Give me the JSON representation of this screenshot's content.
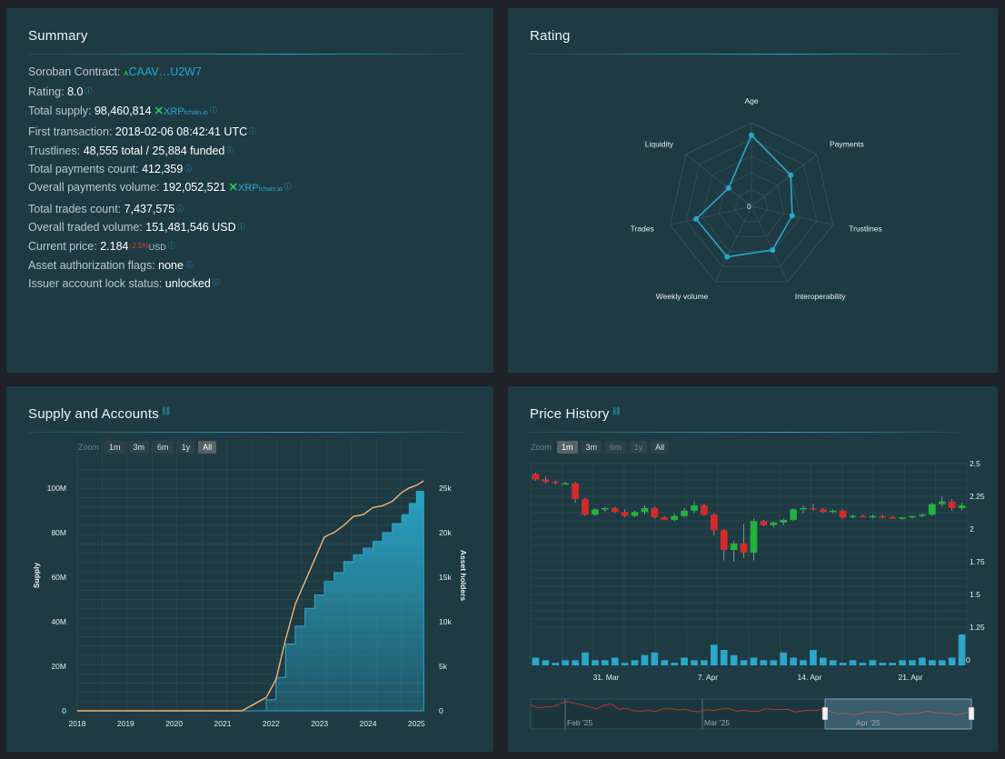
{
  "summary": {
    "title": "Summary",
    "soroban_label": "Soroban Contract:",
    "soroban_value": "CAAV…U2W7",
    "rating_label": "Rating:",
    "rating_value": "8.0",
    "supply_label": "Total supply:",
    "supply_value": "98,460,814",
    "supply_token": "XRP",
    "supply_issuer": "fchain.io",
    "first_tx_label": "First transaction:",
    "first_tx_value": "2018-02-06 08:42:41 UTC",
    "trustlines_label": "Trustlines:",
    "trustlines_value": "48,555 total / 25,884 funded",
    "payments_count_label": "Total payments count:",
    "payments_count_value": "412,359",
    "payments_volume_label": "Overall payments volume:",
    "payments_volume_value": "192,052,521",
    "payments_volume_token": "XRP",
    "payments_volume_issuer": "fchain.io",
    "trades_count_label": "Total trades count:",
    "trades_count_value": "7,437,575",
    "traded_volume_label": "Overall traded volume:",
    "traded_volume_value": "151,481,546 USD",
    "price_label": "Current price:",
    "price_value": "2.184",
    "price_change": "↓2.5%",
    "price_unit": "USD",
    "auth_flags_label": "Asset authorization flags:",
    "auth_flags_value": "none",
    "lock_label": "Issuer account lock status:",
    "lock_value": "unlocked"
  },
  "rating": {
    "title": "Rating",
    "center_label": "0",
    "axes": [
      "Age",
      "Payments",
      "Trustlines",
      "Interoperability",
      "Weekly volume",
      "Trades",
      "Liquidity"
    ],
    "values": [
      0.85,
      0.6,
      0.5,
      0.58,
      0.67,
      0.68,
      0.35
    ],
    "color": "#2aa7c9"
  },
  "supply_chart": {
    "title": "Supply and Accounts",
    "zoom_label": "Zoom",
    "zoom_buttons": [
      "1m",
      "3m",
      "6m",
      "1y",
      "All"
    ],
    "selected": "All",
    "chart_data": {
      "type": "area",
      "x_ticks": [
        "2018",
        "2019",
        "2020",
        "2021",
        "2022",
        "2023",
        "2024",
        "2025"
      ],
      "left_ticks": [
        "0",
        "20M",
        "40M",
        "60M",
        "80M",
        "100M"
      ],
      "right_ticks": [
        "0",
        "5k",
        "10k",
        "15k",
        "20k",
        "25k"
      ],
      "ylabel_left": "Supply",
      "ylabel_right": "Asset holders",
      "supply_color": "#2aa7c9",
      "holders_color": "#f0b27a",
      "x": [
        2018.0,
        2021.4,
        2021.9,
        2022.1,
        2022.3,
        2022.5,
        2022.7,
        2022.9,
        2023.1,
        2023.3,
        2023.5,
        2023.7,
        2023.9,
        2024.1,
        2024.3,
        2024.5,
        2024.7,
        2024.85,
        2025.0,
        2025.15
      ],
      "supply": [
        0,
        0,
        5,
        15,
        30,
        38,
        46,
        52,
        58,
        62,
        67,
        70,
        73,
        76,
        80,
        84,
        88,
        93,
        98.5,
        98.5
      ],
      "holders": [
        0,
        0,
        1.5,
        3.5,
        8,
        12,
        14.5,
        17,
        19.5,
        20,
        20.8,
        21.8,
        22,
        22.8,
        23,
        23.5,
        24.5,
        25,
        25.3,
        25.8
      ]
    }
  },
  "price_chart": {
    "title": "Price History",
    "zoom_label": "Zoom",
    "zoom_buttons": [
      "1m",
      "3m",
      "6m",
      "1y",
      "All"
    ],
    "selected": "1m",
    "chart_data": {
      "type": "candlestick",
      "y_ticks": [
        "2.5",
        "2.25",
        "2",
        "1.75",
        "1.5",
        "1.25"
      ],
      "volume_tick": "0",
      "x_ticks": [
        "31. Mar",
        "7. Apr",
        "14. Apr",
        "21. Apr"
      ],
      "navigator_labels": [
        "Feb '25",
        "Mar '25",
        "Apr '25"
      ],
      "up_color": "#22b33a",
      "down_color": "#d62a2a",
      "volume_color": "#2aa7c9",
      "candles": [
        [
          2.42,
          2.43,
          2.37,
          2.38
        ],
        [
          2.38,
          2.4,
          2.35,
          2.36
        ],
        [
          2.36,
          2.37,
          2.34,
          2.35
        ],
        [
          2.35,
          2.36,
          2.34,
          2.35
        ],
        [
          2.35,
          2.36,
          2.2,
          2.23
        ],
        [
          2.23,
          2.24,
          2.1,
          2.11
        ],
        [
          2.11,
          2.16,
          2.1,
          2.15
        ],
        [
          2.15,
          2.17,
          2.13,
          2.16
        ],
        [
          2.16,
          2.17,
          2.12,
          2.13
        ],
        [
          2.13,
          2.15,
          2.09,
          2.1
        ],
        [
          2.1,
          2.14,
          2.09,
          2.13
        ],
        [
          2.13,
          2.18,
          2.11,
          2.16
        ],
        [
          2.16,
          2.17,
          2.08,
          2.09
        ],
        [
          2.09,
          2.1,
          2.07,
          2.07
        ],
        [
          2.07,
          2.12,
          2.06,
          2.1
        ],
        [
          2.1,
          2.16,
          2.09,
          2.14
        ],
        [
          2.14,
          2.21,
          2.12,
          2.18
        ],
        [
          2.18,
          2.19,
          2.1,
          2.11
        ],
        [
          2.11,
          2.12,
          1.95,
          1.99
        ],
        [
          1.99,
          2.0,
          1.76,
          1.84
        ],
        [
          1.84,
          1.91,
          1.75,
          1.89
        ],
        [
          1.89,
          2.04,
          1.78,
          1.82
        ],
        [
          1.82,
          2.08,
          1.76,
          2.06
        ],
        [
          2.06,
          2.07,
          2.02,
          2.03
        ],
        [
          2.03,
          2.06,
          2.01,
          2.05
        ],
        [
          2.05,
          2.08,
          2.03,
          2.07
        ],
        [
          2.07,
          2.16,
          2.06,
          2.15
        ],
        [
          2.15,
          2.18,
          2.12,
          2.16
        ],
        [
          2.16,
          2.19,
          2.14,
          2.15
        ],
        [
          2.15,
          2.16,
          2.12,
          2.13
        ],
        [
          2.13,
          2.15,
          2.12,
          2.14
        ],
        [
          2.14,
          2.15,
          2.08,
          2.09
        ],
        [
          2.09,
          2.11,
          2.08,
          2.1
        ],
        [
          2.1,
          2.11,
          2.09,
          2.09
        ],
        [
          2.09,
          2.11,
          2.08,
          2.1
        ],
        [
          2.1,
          2.11,
          2.08,
          2.09
        ],
        [
          2.09,
          2.1,
          2.08,
          2.08
        ],
        [
          2.08,
          2.09,
          2.07,
          2.09
        ],
        [
          2.09,
          2.1,
          2.08,
          2.1
        ],
        [
          2.1,
          2.12,
          2.09,
          2.11
        ],
        [
          2.11,
          2.2,
          2.1,
          2.19
        ],
        [
          2.19,
          2.25,
          2.17,
          2.21
        ],
        [
          2.21,
          2.23,
          2.14,
          2.16
        ],
        [
          2.16,
          2.2,
          2.14,
          2.18
        ]
      ],
      "volumes": [
        3,
        2,
        1,
        2,
        2,
        5,
        2,
        2,
        3,
        1,
        2,
        4,
        5,
        2,
        1,
        3,
        2,
        2,
        8,
        6,
        4,
        2,
        3,
        2,
        2,
        5,
        3,
        2,
        6,
        3,
        2,
        1,
        2,
        1,
        2,
        1,
        1,
        2,
        2,
        3,
        2,
        2,
        3,
        12
      ]
    }
  }
}
